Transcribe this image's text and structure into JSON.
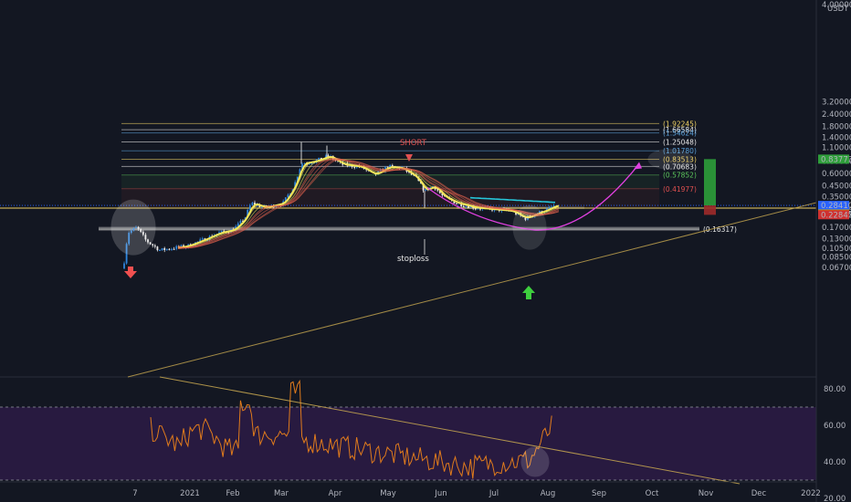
{
  "chart_data": {
    "type": "candlestick",
    "symbol_unit": "USDT",
    "scale": "log",
    "price_axis_ticks": [
      "4.00000",
      "3.20000",
      "2.40000",
      "1.80000",
      "1.40000",
      "1.10000",
      "0.80000",
      "0.60000",
      "0.45000",
      "0.35000",
      "0.26714",
      "0.17000",
      "0.13000",
      "0.10500",
      "0.08500",
      "0.06700"
    ],
    "price_axis_values": [
      4.0,
      3.2,
      2.4,
      1.8,
      1.4,
      1.1,
      0.8,
      0.6,
      0.45,
      0.35,
      0.26714,
      0.17,
      0.13,
      0.105,
      0.085,
      0.067
    ],
    "x_ticks": [
      "7",
      "2021",
      "Feb",
      "Mar",
      "Apr",
      "May",
      "Jun",
      "Jul",
      "Aug",
      "Sep",
      "Oct",
      "Nov",
      "Dec",
      "2022"
    ],
    "fib_levels": [
      {
        "label": "(1.92245)",
        "value": 1.92245,
        "color": "#f0d264"
      },
      {
        "label": "(1.66584)",
        "value": 1.66584,
        "color": "#e8e8e8"
      },
      {
        "label": "(1.54624)",
        "value": 1.54624,
        "color": "#5aa0d8"
      },
      {
        "label": "(1.25048)",
        "value": 1.25048,
        "color": "#e8e8e8"
      },
      {
        "label": "(1.01780)",
        "value": 1.0178,
        "color": "#5aa0d8"
      },
      {
        "label": "(0.83513)",
        "value": 0.83513,
        "color": "#f0d264"
      },
      {
        "label": "(0.70683)",
        "value": 0.70683,
        "color": "#e8e8e8"
      },
      {
        "label": "(0.57852)",
        "value": 0.57852,
        "color": "#5cc85c"
      },
      {
        "label": "(0.41977)",
        "value": 0.41977,
        "color": "#e05050"
      },
      {
        "label": "(0.16317)",
        "value": 0.16317,
        "color": "#e8e8e8"
      }
    ],
    "price_badges": [
      {
        "label": "0.83773",
        "value": 0.83773,
        "color": "#2e9e3a"
      },
      {
        "label": "0.28410",
        "value": 0.2841,
        "color": "#2962ff"
      },
      {
        "label": "14:48:28",
        "value": 0.272,
        "color": "#2962ff"
      },
      {
        "label": "0.23227",
        "value": 0.23227,
        "color": "#c8a800"
      },
      {
        "label": "0.22845",
        "value": 0.22845,
        "color": "#d03030"
      }
    ],
    "annotations": [
      "SHORT",
      "stoploss"
    ],
    "rsi_axis_ticks": [
      "80.00",
      "60.00",
      "40.00",
      "20.00"
    ],
    "rsi_axis_values": [
      80,
      60,
      40,
      20
    ],
    "rsi_bands": [
      70,
      30
    ]
  },
  "colors": {
    "background": "#131722",
    "ribbon_fast": "#f5e75a",
    "ribbon_slow": "#e0604c",
    "rsi_line": "#e07b1c",
    "projection": "#e040e0",
    "support_zone": "#b0b0b0",
    "rsi_band_fill": "#281a40"
  }
}
